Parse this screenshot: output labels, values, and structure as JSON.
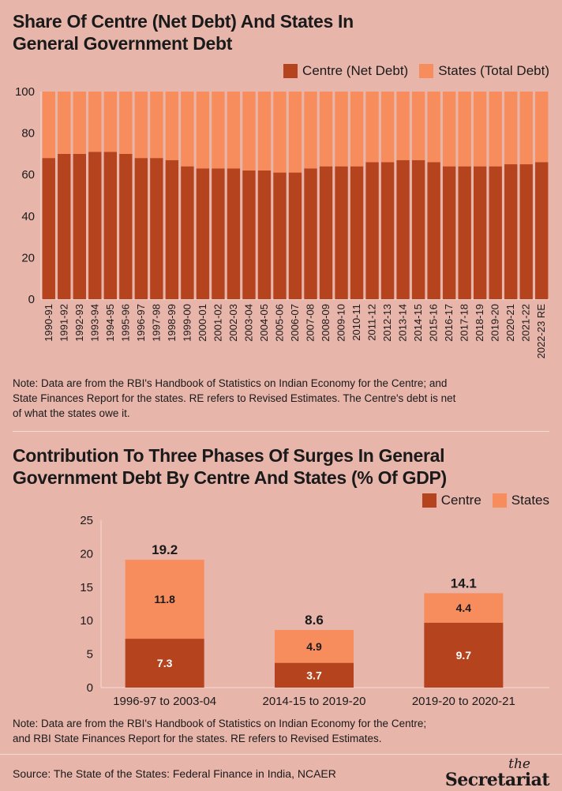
{
  "chart1": {
    "title_line1": "Share Of Centre (Net Debt) And States In",
    "title_line2": "General Government Debt",
    "legend": [
      {
        "label": "Centre (Net Debt)",
        "color": "#b5431e"
      },
      {
        "label": "States (Total Debt)",
        "color": "#f78d5c"
      }
    ],
    "note_line1": "Note: Data are from the RBI's Handbook of Statistics on Indian Economy for the Centre; and",
    "note_line2": "State Finances Report for the states. RE refers to Revised Estimates. The Centre's debt is net",
    "note_line3": "of what the states owe it."
  },
  "chart2": {
    "title_line1": "Contribution To Three Phases Of Surges In General",
    "title_line2": "Government Debt By Centre And States (% Of GDP)",
    "legend": [
      {
        "label": "Centre",
        "color": "#b5431e"
      },
      {
        "label": "States",
        "color": "#f78d5c"
      }
    ],
    "note_line1": "Note: Data are from the RBI's Handbook of Statistics on Indian Economy for the Centre;",
    "note_line2": "and RBI State Finances Report for the states. RE refers to Revised Estimates."
  },
  "footer": {
    "source": "Source: The State of the States: Federal Finance in India, NCAER",
    "brand_the": "the",
    "brand_name": "Secretariat"
  },
  "chart_data": [
    {
      "type": "bar",
      "stacked": true,
      "title": "Share Of Centre (Net Debt) And States In General Government Debt",
      "categories": [
        "1990-91",
        "1991-92",
        "1992-93",
        "1993-94",
        "1994-95",
        "1995-96",
        "1996-97",
        "1997-98",
        "1998-99",
        "1999-00",
        "2000-01",
        "2001-02",
        "2002-03",
        "2003-04",
        "2004-05",
        "2005-06",
        "2006-07",
        "2007-08",
        "2008-09",
        "2009-10",
        "2010-11",
        "2011-12",
        "2012-13",
        "2013-14",
        "2014-15",
        "2015-16",
        "2016-17",
        "2017-18",
        "2018-19",
        "2019-20",
        "2020-21",
        "2021-22",
        "2022-23 RE"
      ],
      "series": [
        {
          "name": "Centre (Net Debt)",
          "color": "#b5431e",
          "values": [
            68,
            70,
            70,
            71,
            71,
            70,
            68,
            68,
            67,
            64,
            63,
            63,
            63,
            62,
            62,
            61,
            61,
            63,
            64,
            64,
            64,
            66,
            66,
            67,
            67,
            66,
            64,
            64,
            64,
            64,
            65,
            65,
            66
          ]
        },
        {
          "name": "States (Total Debt)",
          "color": "#f78d5c",
          "values": [
            32,
            30,
            30,
            29,
            29,
            30,
            32,
            32,
            33,
            36,
            37,
            37,
            37,
            38,
            38,
            39,
            39,
            37,
            36,
            36,
            36,
            34,
            34,
            33,
            33,
            34,
            36,
            36,
            36,
            36,
            35,
            35,
            34
          ]
        }
      ],
      "ylim": [
        0,
        100
      ],
      "yticks": [
        0,
        20,
        40,
        60,
        80,
        100
      ],
      "legend_position": "top-right",
      "grid": false
    },
    {
      "type": "bar",
      "stacked": true,
      "title": "Contribution To Three Phases Of Surges In General Government Debt By Centre And States (% Of GDP)",
      "categories": [
        "1996-97 to 2003-04",
        "2014-15 to 2019-20",
        "2019-20 to 2020-21"
      ],
      "series": [
        {
          "name": "Centre",
          "color": "#b5431e",
          "values": [
            7.3,
            3.7,
            9.7
          ]
        },
        {
          "name": "States",
          "color": "#f78d5c",
          "values": [
            11.8,
            4.9,
            4.4
          ]
        }
      ],
      "totals": [
        "19.2",
        "8.6",
        "14.1"
      ],
      "ylim": [
        0,
        25
      ],
      "yticks": [
        0,
        5,
        10,
        15,
        20,
        25
      ],
      "legend_position": "top-right",
      "grid": false
    }
  ]
}
